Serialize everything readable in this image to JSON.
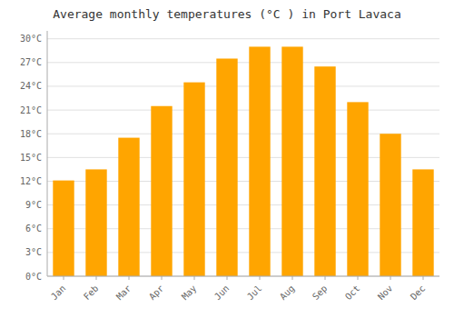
{
  "chart_data": {
    "type": "bar",
    "title": "Average monthly temperatures (°C ) in Port Lavaca",
    "categories": [
      "Jan",
      "Feb",
      "Mar",
      "Apr",
      "May",
      "Jun",
      "Jul",
      "Aug",
      "Sep",
      "Oct",
      "Nov",
      "Dec"
    ],
    "values": [
      12.1,
      13.5,
      17.5,
      21.5,
      24.5,
      27.5,
      29.0,
      29.0,
      26.5,
      22.0,
      18.0,
      13.5
    ],
    "color": "#FFA500",
    "ylim": [
      0,
      31
    ],
    "yticks": [
      {
        "value": 0,
        "label": "0°C"
      },
      {
        "value": 3,
        "label": "3°C"
      },
      {
        "value": 6,
        "label": "6°C"
      },
      {
        "value": 9,
        "label": "9°C"
      },
      {
        "value": 12,
        "label": "12°C"
      },
      {
        "value": 15,
        "label": "15°C"
      },
      {
        "value": 18,
        "label": "18°C"
      },
      {
        "value": 21,
        "label": "21°C"
      },
      {
        "value": 24,
        "label": "24°C"
      },
      {
        "value": 27,
        "label": "27°C"
      },
      {
        "value": 30,
        "label": "30°C"
      }
    ],
    "grid": true
  }
}
